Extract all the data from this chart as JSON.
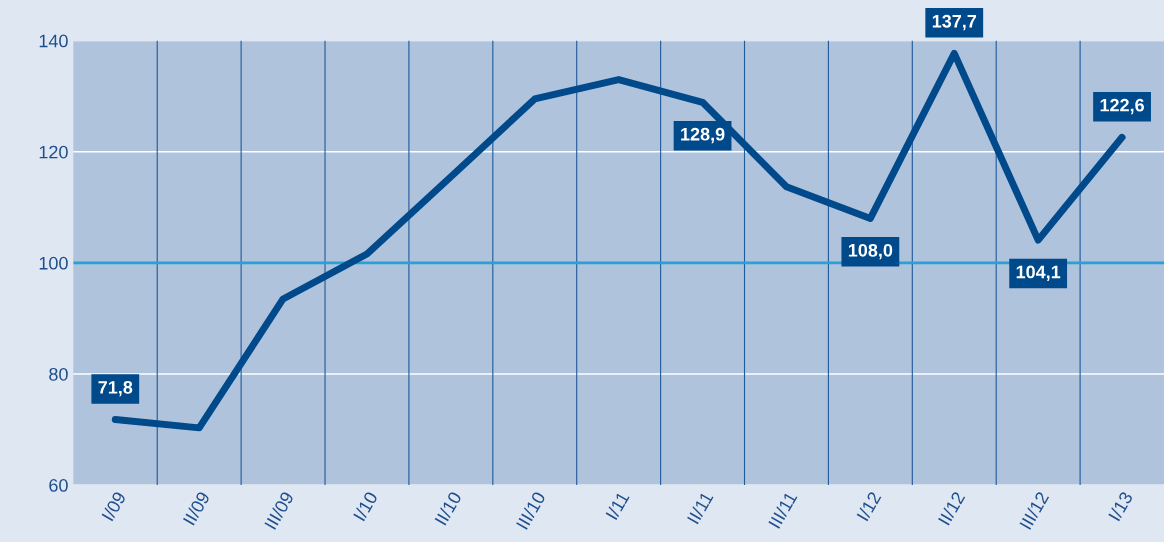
{
  "chart_data": {
    "type": "line",
    "categories": [
      "I/09",
      "II/09",
      "III/09",
      "I/10",
      "II/10",
      "III/10",
      "I/11",
      "II/11",
      "III/11",
      "I/12",
      "II/12",
      "III/12",
      "I/13"
    ],
    "series": [
      {
        "color": "#004a8c",
        "values": [
          71.8,
          70.3,
          93.5,
          101.6,
          115.5,
          129.5,
          133.0,
          128.9,
          113.7,
          108.0,
          137.7,
          104.1,
          122.6
        ],
        "value_labels": [
          "71,8",
          null,
          null,
          null,
          null,
          null,
          null,
          "128,9",
          null,
          "108,0",
          "137,7",
          "104,1",
          "122,6"
        ]
      }
    ],
    "ylim": [
      60,
      140
    ],
    "yticks": [
      60,
      80,
      100,
      120,
      140
    ],
    "grid": "y",
    "marker": "none",
    "line_style": "solid",
    "ref_lines": [
      {
        "axis": "y",
        "value": 100,
        "color": "#2aa0d8"
      }
    ]
  }
}
